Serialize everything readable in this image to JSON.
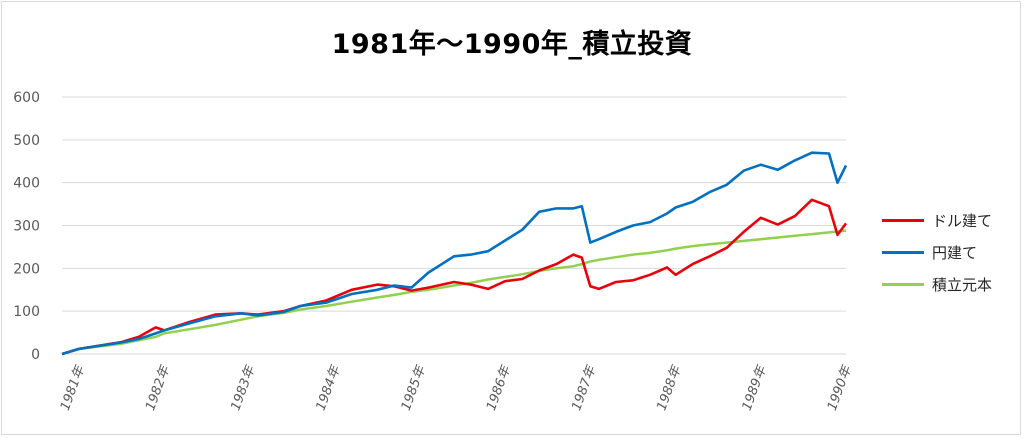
{
  "chart_data": {
    "type": "line",
    "title": "1981年～1990年_積立投資",
    "xlabel": "",
    "ylabel": "",
    "ylim": [
      0,
      600
    ],
    "yticks": [
      "0",
      "100",
      "200",
      "300",
      "400",
      "500",
      "600"
    ],
    "xticks": [
      "1981年",
      "1982年",
      "1983年",
      "1984年",
      "1985年",
      "1986年",
      "1987年",
      "1988年",
      "1989年",
      "1990年"
    ],
    "grid": true,
    "legend_position": "right",
    "x": [
      1980.8,
      1981.0,
      1981.5,
      1981.7,
      1981.9,
      1982.0,
      1982.3,
      1982.6,
      1982.9,
      1983.1,
      1983.4,
      1983.6,
      1983.9,
      1984.2,
      1984.5,
      1984.7,
      1984.9,
      1985.1,
      1985.4,
      1985.6,
      1985.8,
      1986.0,
      1986.2,
      1986.4,
      1986.6,
      1986.8,
      1986.9,
      1987.0,
      1987.1,
      1987.3,
      1987.5,
      1987.7,
      1987.9,
      1988.0,
      1988.2,
      1988.4,
      1988.6,
      1988.8,
      1989.0,
      1989.2,
      1989.4,
      1989.6,
      1989.8,
      1989.9,
      1990.0
    ],
    "series": [
      {
        "name": "ドル建て",
        "color": "#e8000b",
        "values": [
          0,
          12,
          28,
          40,
          62,
          55,
          75,
          92,
          95,
          92,
          100,
          112,
          125,
          150,
          162,
          158,
          148,
          155,
          168,
          162,
          152,
          170,
          175,
          195,
          210,
          232,
          225,
          158,
          152,
          168,
          172,
          185,
          202,
          185,
          210,
          228,
          248,
          285,
          318,
          302,
          322,
          360,
          345,
          278,
          305
        ]
      },
      {
        "name": "円建て",
        "color": "#0070c0",
        "values": [
          0,
          12,
          27,
          35,
          48,
          55,
          72,
          88,
          95,
          90,
          98,
          112,
          120,
          140,
          150,
          160,
          155,
          190,
          228,
          232,
          240,
          265,
          290,
          332,
          340,
          340,
          345,
          260,
          268,
          285,
          300,
          308,
          328,
          342,
          355,
          378,
          395,
          428,
          442,
          430,
          452,
          470,
          468,
          400,
          440
        ]
      },
      {
        "name": "積立元本",
        "color": "#92d050",
        "values": [
          0,
          12,
          24,
          32,
          40,
          48,
          58,
          68,
          80,
          88,
          96,
          104,
          112,
          122,
          132,
          138,
          145,
          150,
          160,
          166,
          174,
          180,
          186,
          194,
          200,
          205,
          210,
          216,
          220,
          226,
          232,
          236,
          242,
          246,
          252,
          256,
          260,
          264,
          268,
          272,
          276,
          280,
          284,
          286,
          288
        ]
      }
    ]
  }
}
